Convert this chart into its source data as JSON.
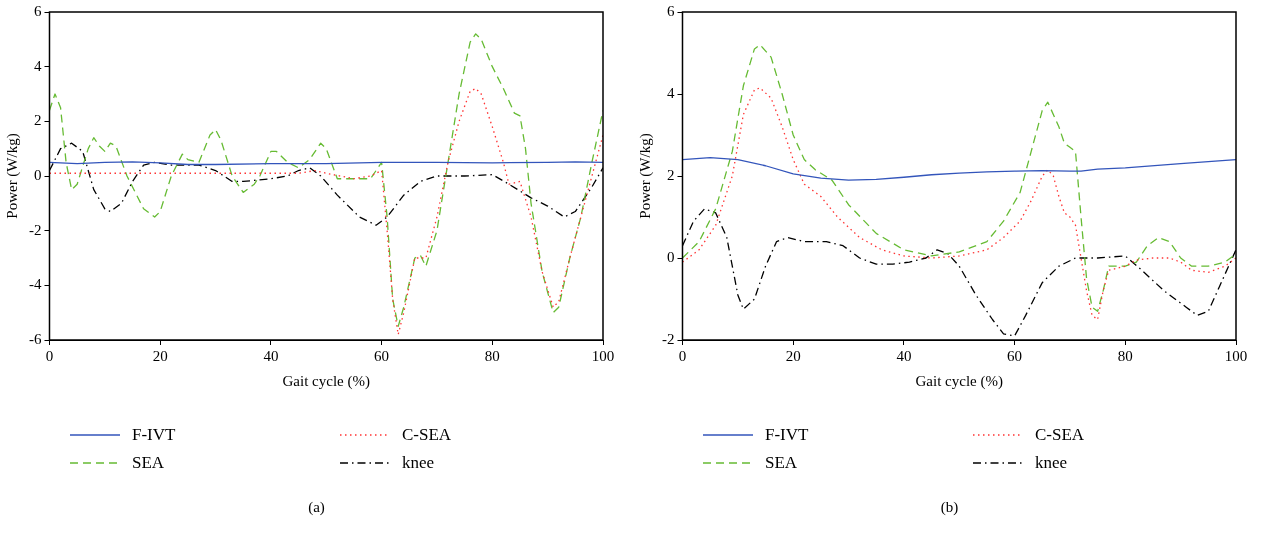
{
  "chart_data": [
    {
      "type": "line",
      "xlabel": "Gait cycle (%)",
      "ylabel": "Power (W/kg)",
      "xlim": [
        0,
        100
      ],
      "ylim": [
        -6,
        6
      ],
      "xticks": [
        0,
        20,
        40,
        60,
        80,
        100
      ],
      "yticks": [
        -6,
        -4,
        -2,
        0,
        2,
        4,
        6
      ],
      "grid": false,
      "legend": "bottom",
      "marker": "none",
      "annotations": [
        "(a)"
      ],
      "series": [
        {
          "name": "F-IVT",
          "color": "#3355bb",
          "line_style": "solid",
          "x": [
            0,
            5,
            10,
            15,
            20,
            25,
            30,
            40,
            50,
            60,
            70,
            80,
            90,
            95,
            100
          ],
          "values": [
            0.5,
            0.45,
            0.5,
            0.52,
            0.48,
            0.42,
            0.42,
            0.45,
            0.45,
            0.5,
            0.5,
            0.48,
            0.5,
            0.52,
            0.5
          ]
        },
        {
          "name": "C-SEA",
          "color": "#ff3333",
          "line_style": "dotted",
          "x": [
            0,
            10,
            20,
            30,
            40,
            45,
            48,
            50,
            55,
            58,
            60,
            61,
            62,
            63,
            64,
            66,
            68,
            70,
            72,
            74,
            76,
            77,
            78,
            80,
            82,
            83,
            85,
            87,
            89,
            91,
            92,
            94,
            96,
            98,
            100
          ],
          "values": [
            0.1,
            0.1,
            0.1,
            0.1,
            0.1,
            0.1,
            0.2,
            0.1,
            -0.1,
            0,
            0.2,
            -2,
            -4.5,
            -5.8,
            -5,
            -3,
            -3,
            -1.5,
            0.5,
            2,
            3.1,
            3.2,
            3,
            1.8,
            0.5,
            -0.3,
            -0.2,
            -1.5,
            -3.5,
            -4.8,
            -4.6,
            -3,
            -1.5,
            0,
            1.5
          ]
        },
        {
          "name": "SEA",
          "color": "#66bb33",
          "line_style": "dashed",
          "x": [
            0,
            1,
            2,
            3,
            4,
            5,
            7,
            8,
            9,
            10,
            11,
            12,
            14,
            17,
            19,
            20,
            22,
            24,
            25,
            27,
            29,
            30,
            31,
            33,
            35,
            37,
            38,
            40,
            41,
            43,
            45,
            47,
            49,
            50,
            52,
            54,
            56,
            58,
            60,
            61,
            62,
            63,
            64,
            66,
            67,
            68,
            70,
            72,
            74,
            76,
            77,
            78,
            80,
            82,
            84,
            85,
            86,
            87,
            89,
            91,
            92,
            94,
            96,
            98,
            100
          ],
          "values": [
            2.4,
            3,
            2.5,
            0.5,
            -0.5,
            -0.3,
            1,
            1.4,
            1.1,
            0.9,
            1.2,
            1.1,
            0,
            -1.2,
            -1.5,
            -1.3,
            0,
            0.8,
            0.6,
            0.5,
            1.5,
            1.7,
            1.3,
            0,
            -0.6,
            -0.3,
            0,
            0.9,
            0.9,
            0.5,
            0.3,
            0.6,
            1.2,
            1,
            -0.1,
            -0.1,
            -0.1,
            -0.1,
            0.5,
            -1.5,
            -4.5,
            -5.5,
            -4.8,
            -3,
            -2.9,
            -3.3,
            -2,
            0.5,
            3,
            4.9,
            5.2,
            5,
            4,
            3.2,
            2.3,
            2.2,
            1,
            -1,
            -3.5,
            -5,
            -4.8,
            -3,
            -1.5,
            0.5,
            2.4
          ]
        },
        {
          "name": "knee",
          "color": "#000000",
          "line_style": "dashdot",
          "x": [
            0,
            2,
            4,
            6,
            8,
            10,
            11,
            13,
            15,
            17,
            19,
            22,
            27,
            30,
            33,
            35,
            40,
            43,
            45,
            47,
            49,
            52,
            56,
            59,
            61,
            64,
            67,
            70,
            75,
            80,
            83,
            87,
            90,
            93,
            95,
            98,
            100
          ],
          "values": [
            0.2,
            1,
            1.2,
            0.9,
            -0.5,
            -1.2,
            -1.3,
            -1,
            -0.2,
            0.4,
            0.5,
            0.4,
            0.4,
            0.2,
            -0.2,
            -0.2,
            -0.1,
            0,
            0.2,
            0.3,
            0,
            -0.7,
            -1.5,
            -1.8,
            -1.5,
            -0.7,
            -0.2,
            0,
            0,
            0.05,
            -0.3,
            -0.8,
            -1.1,
            -1.5,
            -1.3,
            -0.4,
            0.3
          ]
        }
      ]
    },
    {
      "type": "line",
      "xlabel": "Gait cycle (%)",
      "ylabel": "Power (W/kg)",
      "xlim": [
        0,
        100
      ],
      "ylim": [
        -2,
        6
      ],
      "xticks": [
        0,
        20,
        40,
        60,
        80,
        100
      ],
      "yticks": [
        -2,
        0,
        2,
        4,
        6
      ],
      "grid": false,
      "legend": "bottom",
      "marker": "none",
      "annotations": [
        "(b)"
      ],
      "series": [
        {
          "name": "F-IVT",
          "color": "#3355bb",
          "line_style": "solid",
          "x": [
            0,
            5,
            10,
            15,
            20,
            25,
            30,
            35,
            40,
            45,
            50,
            55,
            60,
            65,
            70,
            72,
            75,
            80,
            90,
            100
          ],
          "values": [
            2.4,
            2.45,
            2.4,
            2.25,
            2.05,
            1.95,
            1.9,
            1.92,
            1.97,
            2.03,
            2.07,
            2.1,
            2.12,
            2.13,
            2.12,
            2.12,
            2.17,
            2.2,
            2.3,
            2.4
          ]
        },
        {
          "name": "C-SEA",
          "color": "#ff3333",
          "line_style": "dotted",
          "x": [
            0,
            3,
            6,
            9,
            11,
            13,
            14,
            16,
            18,
            20,
            22,
            25,
            28,
            32,
            36,
            40,
            45,
            50,
            55,
            58,
            61,
            63,
            65,
            66,
            67,
            68,
            69,
            70,
            71,
            72,
            73,
            74,
            75,
            76,
            77,
            80,
            82,
            85,
            88,
            90,
            92,
            95,
            98,
            100
          ],
          "values": [
            -0.1,
            0.2,
            0.8,
            2,
            3.5,
            4.1,
            4.15,
            3.9,
            3.2,
            2.4,
            1.8,
            1.5,
            1,
            0.5,
            0.2,
            0.05,
            0,
            0.05,
            0.2,
            0.5,
            0.9,
            1.4,
            2,
            2.15,
            2,
            1.5,
            1.1,
            1,
            0.8,
            0,
            -0.8,
            -1.4,
            -1.5,
            -0.8,
            -0.3,
            -0.2,
            -0.05,
            0,
            0,
            -0.1,
            -0.3,
            -0.35,
            -0.2,
            0
          ]
        },
        {
          "name": "SEA",
          "color": "#66bb33",
          "line_style": "dashed",
          "x": [
            0,
            3,
            6,
            9,
            11,
            13,
            14,
            16,
            18,
            20,
            22,
            24,
            27,
            30,
            35,
            40,
            45,
            50,
            55,
            58,
            61,
            63,
            65,
            66,
            68,
            69,
            70,
            71,
            72,
            73,
            74,
            75,
            76,
            77,
            78,
            80,
            82,
            84,
            86,
            88,
            90,
            92,
            95,
            98,
            100
          ],
          "values": [
            0,
            0.4,
            1.2,
            2.6,
            4.2,
            5.1,
            5.2,
            4.9,
            4,
            3,
            2.4,
            2.15,
            1.9,
            1.3,
            0.6,
            0.2,
            0.05,
            0.15,
            0.4,
            0.9,
            1.6,
            2.6,
            3.6,
            3.8,
            3.2,
            2.8,
            2.7,
            2.6,
            1,
            -0.5,
            -1.2,
            -1.3,
            -0.8,
            -0.2,
            -0.2,
            -0.2,
            -0.1,
            0.3,
            0.5,
            0.4,
            0,
            -0.2,
            -0.2,
            -0.1,
            0.1
          ]
        },
        {
          "name": "knee",
          "color": "#000000",
          "line_style": "dashdot",
          "x": [
            0,
            2,
            4,
            6,
            8,
            10,
            11,
            13,
            15,
            17,
            19,
            22,
            26,
            29,
            32,
            35,
            38,
            41,
            44,
            46,
            48,
            50,
            53,
            56,
            58,
            60,
            62,
            65,
            68,
            71,
            75,
            80,
            83,
            87,
            91,
            93,
            95,
            97,
            100
          ],
          "values": [
            0.3,
            0.9,
            1.2,
            1.1,
            0.5,
            -0.9,
            -1.25,
            -1,
            -0.2,
            0.4,
            0.5,
            0.4,
            0.4,
            0.3,
            0,
            -0.15,
            -0.15,
            -0.1,
            0,
            0.2,
            0.1,
            -0.2,
            -0.9,
            -1.5,
            -1.85,
            -1.9,
            -1.4,
            -0.6,
            -0.2,
            0,
            0,
            0.05,
            -0.3,
            -0.8,
            -1.2,
            -1.4,
            -1.3,
            -0.7,
            0.2
          ]
        }
      ]
    }
  ]
}
